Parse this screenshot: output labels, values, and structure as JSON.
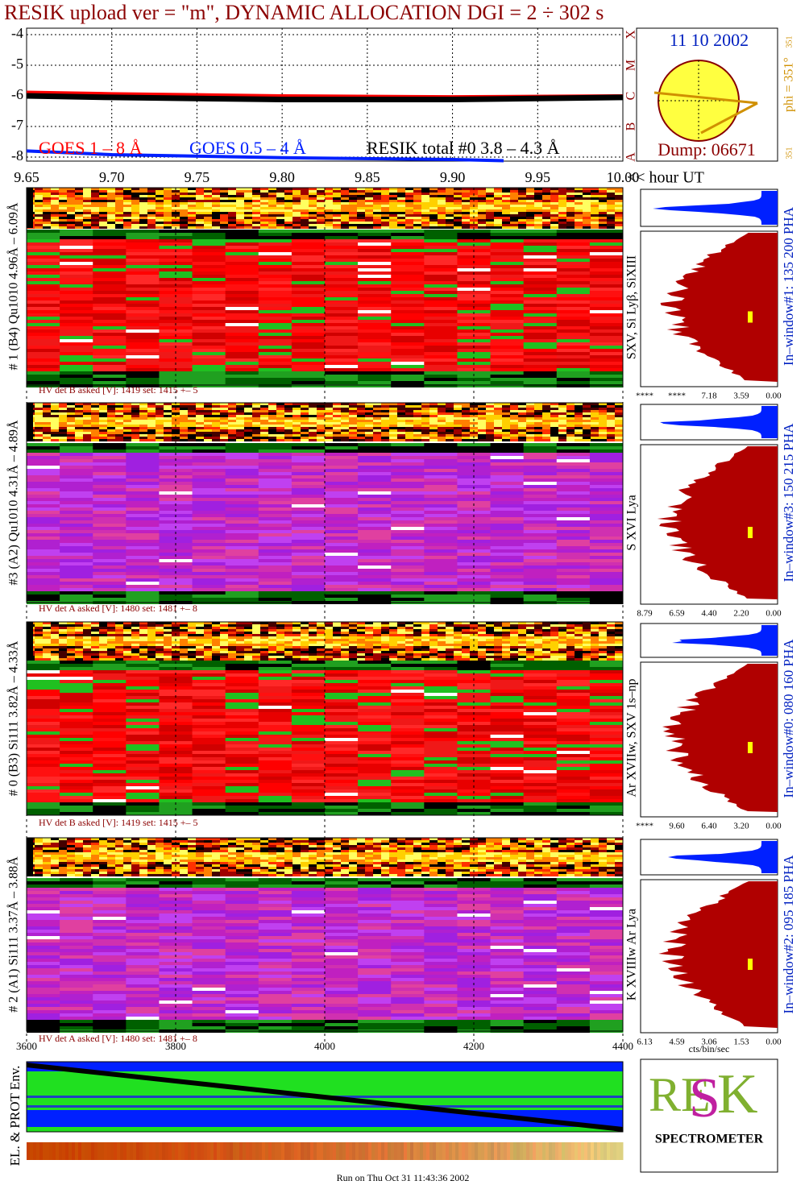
{
  "title": "RESIK upload ver = \"m\", DYNAMIC ALLOCATION  DGI =   2 ÷ 302 s",
  "chart_data": {
    "type": "line",
    "x_label": "<< hour UT",
    "xlim": [
      9.65,
      10.0
    ],
    "xticks": [
      {
        "value": 9.65,
        "label": "9.65"
      },
      {
        "value": 9.7,
        "label": "9.70"
      },
      {
        "value": 9.75,
        "label": "9.75"
      },
      {
        "value": 9.8,
        "label": "9.80"
      },
      {
        "value": 9.85,
        "label": "9.85"
      },
      {
        "value": 9.9,
        "label": "9.90"
      },
      {
        "value": 9.95,
        "label": "9.95"
      },
      {
        "value": 10.0,
        "label": "10.00"
      }
    ],
    "ylim": [
      -4,
      -8
    ],
    "yticks": [
      -4,
      -5,
      -6,
      -7,
      -8
    ],
    "class_labels": [
      "X",
      "M",
      "C",
      "B",
      "A"
    ],
    "grid": true,
    "series": [
      {
        "name": "GOES 1 – 8 Å",
        "color": "#ff0000",
        "x": [
          9.65,
          9.7,
          9.8,
          9.9,
          10.0
        ],
        "values": [
          -5.88,
          -5.93,
          -6.0,
          -6.03,
          -6.0
        ]
      },
      {
        "name": "GOES 0.5 – 4 Å",
        "color": "#0020ff",
        "x": [
          9.65,
          9.7,
          9.8,
          9.9,
          9.93
        ],
        "values": [
          -7.8,
          -7.92,
          -8.02,
          -8.08,
          -8.12
        ]
      },
      {
        "name": "RESIK total #0  3.8 – 4.3 Å",
        "color": "#000000",
        "x": [
          9.65,
          9.7,
          9.8,
          9.9,
          10.0
        ],
        "values": [
          -6.0,
          -6.05,
          -6.12,
          -6.12,
          -6.05
        ]
      }
    ]
  },
  "sun": {
    "date": "11 10 2002",
    "phi": "phi = 351°",
    "phi_small": "351",
    "phi_small2": "351",
    "dump": "Dump: 06671"
  },
  "panels": [
    {
      "label": "# 1 (B4) Qu1010 4.96Å – 6.09Å",
      "lines": "SXV, Si Lyβ, SiXIII",
      "window": "In–window#1:  135 200 PHA",
      "hv": "HV det B asked [V]:  1419 set:  1415  +–   5",
      "hist_ticks": [
        "****",
        "****",
        "7.18",
        "3.59",
        "0.00"
      ]
    },
    {
      "label": "#3 (A2) Qu1010  4.31Å – 4.89Å",
      "lines": "S XVI Lya",
      "window": "In–window#3:  150 215 PHA",
      "hv": "HV det A asked [V]:  1480 set:  1481  +–   8",
      "hist_ticks": [
        "8.79",
        "6.59",
        "4.40",
        "2.20",
        "0.00"
      ]
    },
    {
      "label": "# 0 (B3) Si111  3.82Å – 4.33Å",
      "lines": "Ar XVIIw,  SXV 1s–np",
      "window": "In–window#0:  080 160 PHA",
      "hv": "HV det B asked [V]:  1419 set:  1415  +–   5",
      "hist_ticks": [
        "****",
        "9.60",
        "6.40",
        "3.20",
        "0.00"
      ]
    },
    {
      "label": "# 2 (A1) Si111  3.37Å – 3.88Å",
      "lines": "K XVIIIw  Ar Lya",
      "window": "In–window#2:  095 185 PHA",
      "hv": "HV det A asked [V]:  1480 set:  1481  +–   8",
      "hist_ticks": [
        "6.13",
        "4.59",
        "3.06",
        "1.53",
        "0.00"
      ]
    }
  ],
  "hist_unit": "cts/bin/sec",
  "bottom_axis": {
    "xlim": [
      3600,
      4400
    ],
    "xticks": [
      3600,
      3800,
      4000,
      4200,
      4400
    ]
  },
  "env_label": "EL. & PROT Env.",
  "logo": "SPECTROMETER",
  "footer": "Run on Thu Oct 31 11:43:36 2002"
}
